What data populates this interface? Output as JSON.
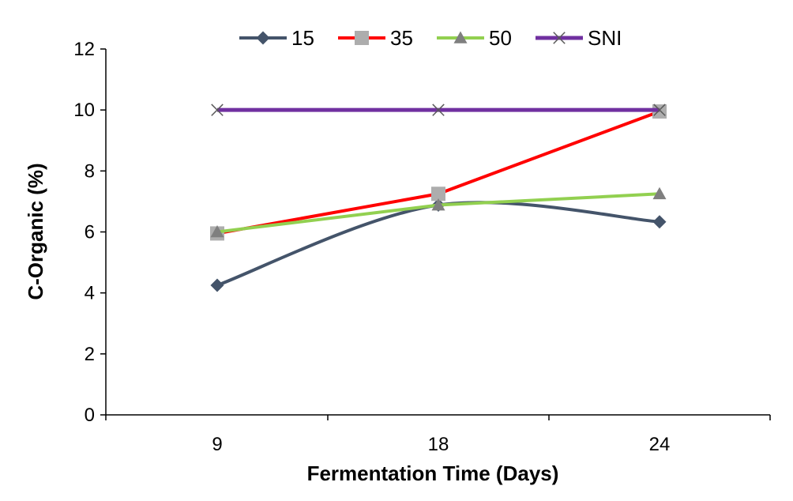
{
  "chart_data": {
    "type": "line",
    "title": "",
    "xlabel": "Fermentation Time (Days)",
    "ylabel": "C-Organic (%)",
    "categories": [
      "9",
      "18",
      "24"
    ],
    "ylim": [
      0,
      12
    ],
    "yticks": [
      "0",
      "2",
      "4",
      "6",
      "8",
      "10",
      "12"
    ],
    "grid": false,
    "legend_position": "top",
    "series": [
      {
        "name": "15",
        "values": [
          4.25,
          6.88,
          6.33
        ],
        "color": "#44546A",
        "marker": "diamond",
        "smooth": true
      },
      {
        "name": "35",
        "values": [
          5.95,
          7.25,
          9.95
        ],
        "color": "#FF0000",
        "marker": "square",
        "marker_color": "#ADADAD",
        "smooth": false
      },
      {
        "name": "50",
        "values": [
          6.0,
          6.88,
          7.25
        ],
        "color": "#92D050",
        "marker": "triangle",
        "marker_color": "#7F7F7F",
        "smooth": false
      },
      {
        "name": "SNI",
        "values": [
          10,
          10,
          10
        ],
        "color": "#7030A0",
        "marker": "x",
        "marker_color": "#595959",
        "smooth": false
      }
    ]
  }
}
